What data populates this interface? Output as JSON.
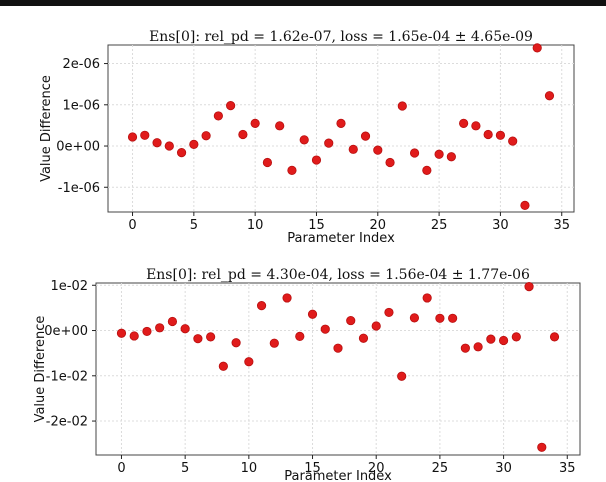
{
  "chart_data": [
    {
      "type": "scatter",
      "title": "Ens[0]: rel_pd = 1.62e-07, loss = 1.65e-04 ± 4.65e-09",
      "xlabel": "Parameter Index",
      "ylabel": "Value Difference",
      "xlim": [
        -2,
        36
      ],
      "ylim": [
        -1.6e-06,
        2.45e-06
      ],
      "xticks": [
        0,
        5,
        10,
        15,
        20,
        25,
        30,
        35
      ],
      "xtick_labels": [
        "0",
        "5",
        "10",
        "15",
        "20",
        "25",
        "30",
        "35"
      ],
      "yticks": [
        -1e-06,
        0,
        1e-06,
        2e-06
      ],
      "ytick_labels": [
        "-1e-06",
        "0e+00",
        "1e-06",
        "2e-06"
      ],
      "grid": true,
      "marker_color": "#e01b1b",
      "x": [
        0,
        1,
        2,
        3,
        4,
        5,
        6,
        7,
        8,
        9,
        10,
        11,
        12,
        13,
        14,
        15,
        16,
        17,
        18,
        19,
        20,
        21,
        22,
        23,
        24,
        25,
        26,
        27,
        28,
        29,
        30,
        31,
        32,
        33,
        34
      ],
      "y": [
        2.2e-07,
        2.6e-07,
        8e-08,
        0,
        -1.6e-07,
        4e-08,
        2.5e-07,
        7.3e-07,
        9.8e-07,
        2.8e-07,
        5.5e-07,
        -4e-07,
        4.9e-07,
        -5.9e-07,
        1.5e-07,
        -3.4e-07,
        7e-08,
        5.5e-07,
        -8e-08,
        2.4e-07,
        -1e-07,
        -4e-07,
        9.7e-07,
        -1.7e-07,
        -5.9e-07,
        -2e-07,
        -2.6e-07,
        5.5e-07,
        4.9e-07,
        2.8e-07,
        2.6e-07,
        1.2e-07,
        -1.44e-06,
        2.38e-06,
        1.22e-06
      ]
    },
    {
      "type": "scatter",
      "title": "Ens[0]: rel_pd = 4.30e-04, loss = 1.56e-04 ± 1.77e-06",
      "xlabel": "Parameter Index",
      "ylabel": "Value Difference",
      "xlim": [
        -2,
        36
      ],
      "ylim": [
        -0.0275,
        0.0105
      ],
      "xticks": [
        0,
        5,
        10,
        15,
        20,
        25,
        30,
        35
      ],
      "xtick_labels": [
        "0",
        "5",
        "10",
        "15",
        "20",
        "25",
        "30",
        "35"
      ],
      "yticks": [
        -0.02,
        -0.01,
        0,
        0.01
      ],
      "ytick_labels": [
        "-2e-02",
        "-1e-02",
        "0e+00",
        "1e-02"
      ],
      "grid": true,
      "marker_color": "#e01b1b",
      "x": [
        0,
        1,
        2,
        3,
        4,
        5,
        6,
        7,
        8,
        9,
        10,
        11,
        12,
        13,
        14,
        15,
        16,
        17,
        18,
        19,
        20,
        21,
        22,
        23,
        24,
        25,
        26,
        27,
        28,
        29,
        30,
        31,
        32,
        33,
        34
      ],
      "y": [
        -0.0006,
        -0.0012,
        -0.0002,
        0.0006,
        0.002,
        0.0004,
        -0.0018,
        -0.0014,
        -0.0079,
        -0.0027,
        -0.0069,
        0.0055,
        -0.0028,
        0.0072,
        -0.0013,
        0.0036,
        0.0003,
        -0.0039,
        0.0022,
        -0.0017,
        0.001,
        0.004,
        -0.0101,
        0.0028,
        0.0072,
        0.0027,
        0.0027,
        -0.0039,
        -0.0036,
        -0.0019,
        -0.0022,
        -0.0014,
        0.0097,
        -0.0258,
        -0.0014
      ]
    }
  ]
}
